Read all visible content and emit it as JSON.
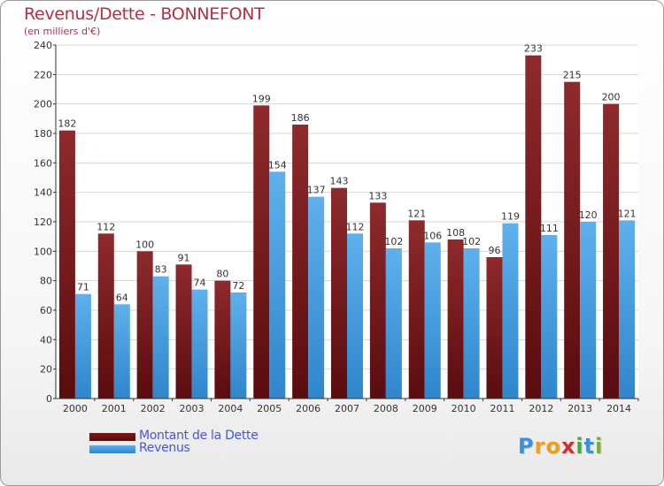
{
  "header": {
    "title": "Revenus/Dette - BONNEFONT",
    "subtitle": "(en milliers d'€)"
  },
  "chart_data": {
    "type": "bar",
    "title": "Revenus/Dette - BONNEFONT",
    "subtitle": "(en milliers d'€)",
    "xlabel": "",
    "ylabel": "",
    "ylim": [
      0,
      240
    ],
    "yticks": [
      0,
      20,
      40,
      60,
      80,
      100,
      120,
      140,
      160,
      180,
      200,
      220,
      240
    ],
    "grid": true,
    "legend_position": "bottom-left",
    "categories": [
      "2000",
      "2001",
      "2002",
      "2003",
      "2004",
      "2005",
      "2006",
      "2007",
      "2008",
      "2009",
      "2010",
      "2011",
      "2012",
      "2013",
      "2014"
    ],
    "series": [
      {
        "name": "Montant de la Dette",
        "color": "#7a1a1c",
        "values": [
          182,
          112,
          100,
          91,
          80,
          199,
          186,
          143,
          133,
          121,
          108,
          96,
          233,
          215,
          200
        ]
      },
      {
        "name": "Revenus",
        "color": "#4a9fe0",
        "values": [
          71,
          64,
          83,
          74,
          72,
          154,
          137,
          112,
          102,
          106,
          102,
          119,
          111,
          120,
          121
        ]
      }
    ]
  },
  "logo": {
    "letters": [
      "P",
      "r",
      "o",
      "x",
      "i",
      "t",
      "i"
    ],
    "colors": [
      "#3d8fd6",
      "#f0a020",
      "#e8a018",
      "#d03030",
      "#4aa840",
      "#3d8fd6",
      "#7ab030"
    ]
  }
}
